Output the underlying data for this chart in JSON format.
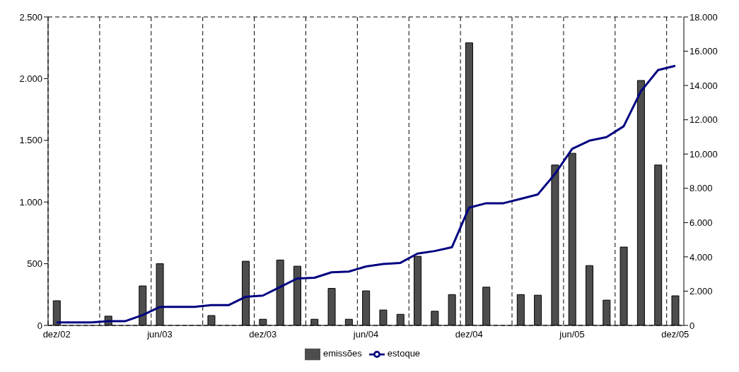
{
  "chart_data": {
    "type": "bar",
    "categories": [
      "dez/02",
      null,
      null,
      null,
      null,
      null,
      "jun/03",
      null,
      null,
      null,
      null,
      null,
      "dez/03",
      null,
      null,
      null,
      null,
      null,
      "jun/04",
      null,
      null,
      null,
      null,
      null,
      "dez/04",
      null,
      null,
      null,
      null,
      null,
      "jun/05",
      null,
      null,
      null,
      null,
      null,
      "dez/05"
    ],
    "series": [
      {
        "name": "emissões",
        "color": "#4d4d4d",
        "values": [
          200,
          null,
          null,
          75,
          null,
          320,
          500,
          null,
          null,
          80,
          null,
          520,
          50,
          530,
          480,
          50,
          300,
          50,
          280,
          125,
          90,
          560,
          115,
          250,
          2290,
          310,
          null,
          250,
          245,
          1300,
          1395,
          485,
          205,
          635,
          1985,
          1300,
          240
        ]
      },
      {
        "name": "estoque",
        "type": "line",
        "axis": "y2",
        "color": "#000080",
        "values": [
          180,
          180,
          180,
          250,
          250,
          600,
          1080,
          1080,
          1080,
          1180,
          1180,
          1670,
          1740,
          2240,
          2740,
          2780,
          3100,
          3140,
          3440,
          3580,
          3650,
          4190,
          4340,
          4560,
          6870,
          7130,
          7130,
          7380,
          7640,
          8840,
          10300,
          10780,
          10990,
          11620,
          13660,
          14900,
          15150
        ]
      }
    ],
    "ylim": [
      0,
      2500
    ],
    "yticks": [
      0,
      500,
      {
        "value": 1000,
        "label": "1.000"
      },
      {
        "value": 1500,
        "label": "1.500"
      },
      {
        "value": 2000,
        "label": "2.000"
      },
      {
        "value": 2500,
        "label": "2.500"
      }
    ],
    "y2lim": [
      0,
      18000
    ],
    "y2ticks": [
      0,
      {
        "value": 2000,
        "label": "2.000"
      },
      {
        "value": 4000,
        "label": "4.000"
      },
      {
        "value": 6000,
        "label": "6.000"
      },
      {
        "value": 8000,
        "label": "8.000"
      },
      {
        "value": 10000,
        "label": "10.000"
      },
      {
        "value": 12000,
        "label": "12.000"
      },
      {
        "value": 14000,
        "label": "14.000"
      },
      {
        "value": 16000,
        "label": "16.000"
      },
      {
        "value": 18000,
        "label": "18.000"
      }
    ],
    "grid": true,
    "legend": "bottom",
    "marker": "none",
    "line_style": "solid"
  }
}
